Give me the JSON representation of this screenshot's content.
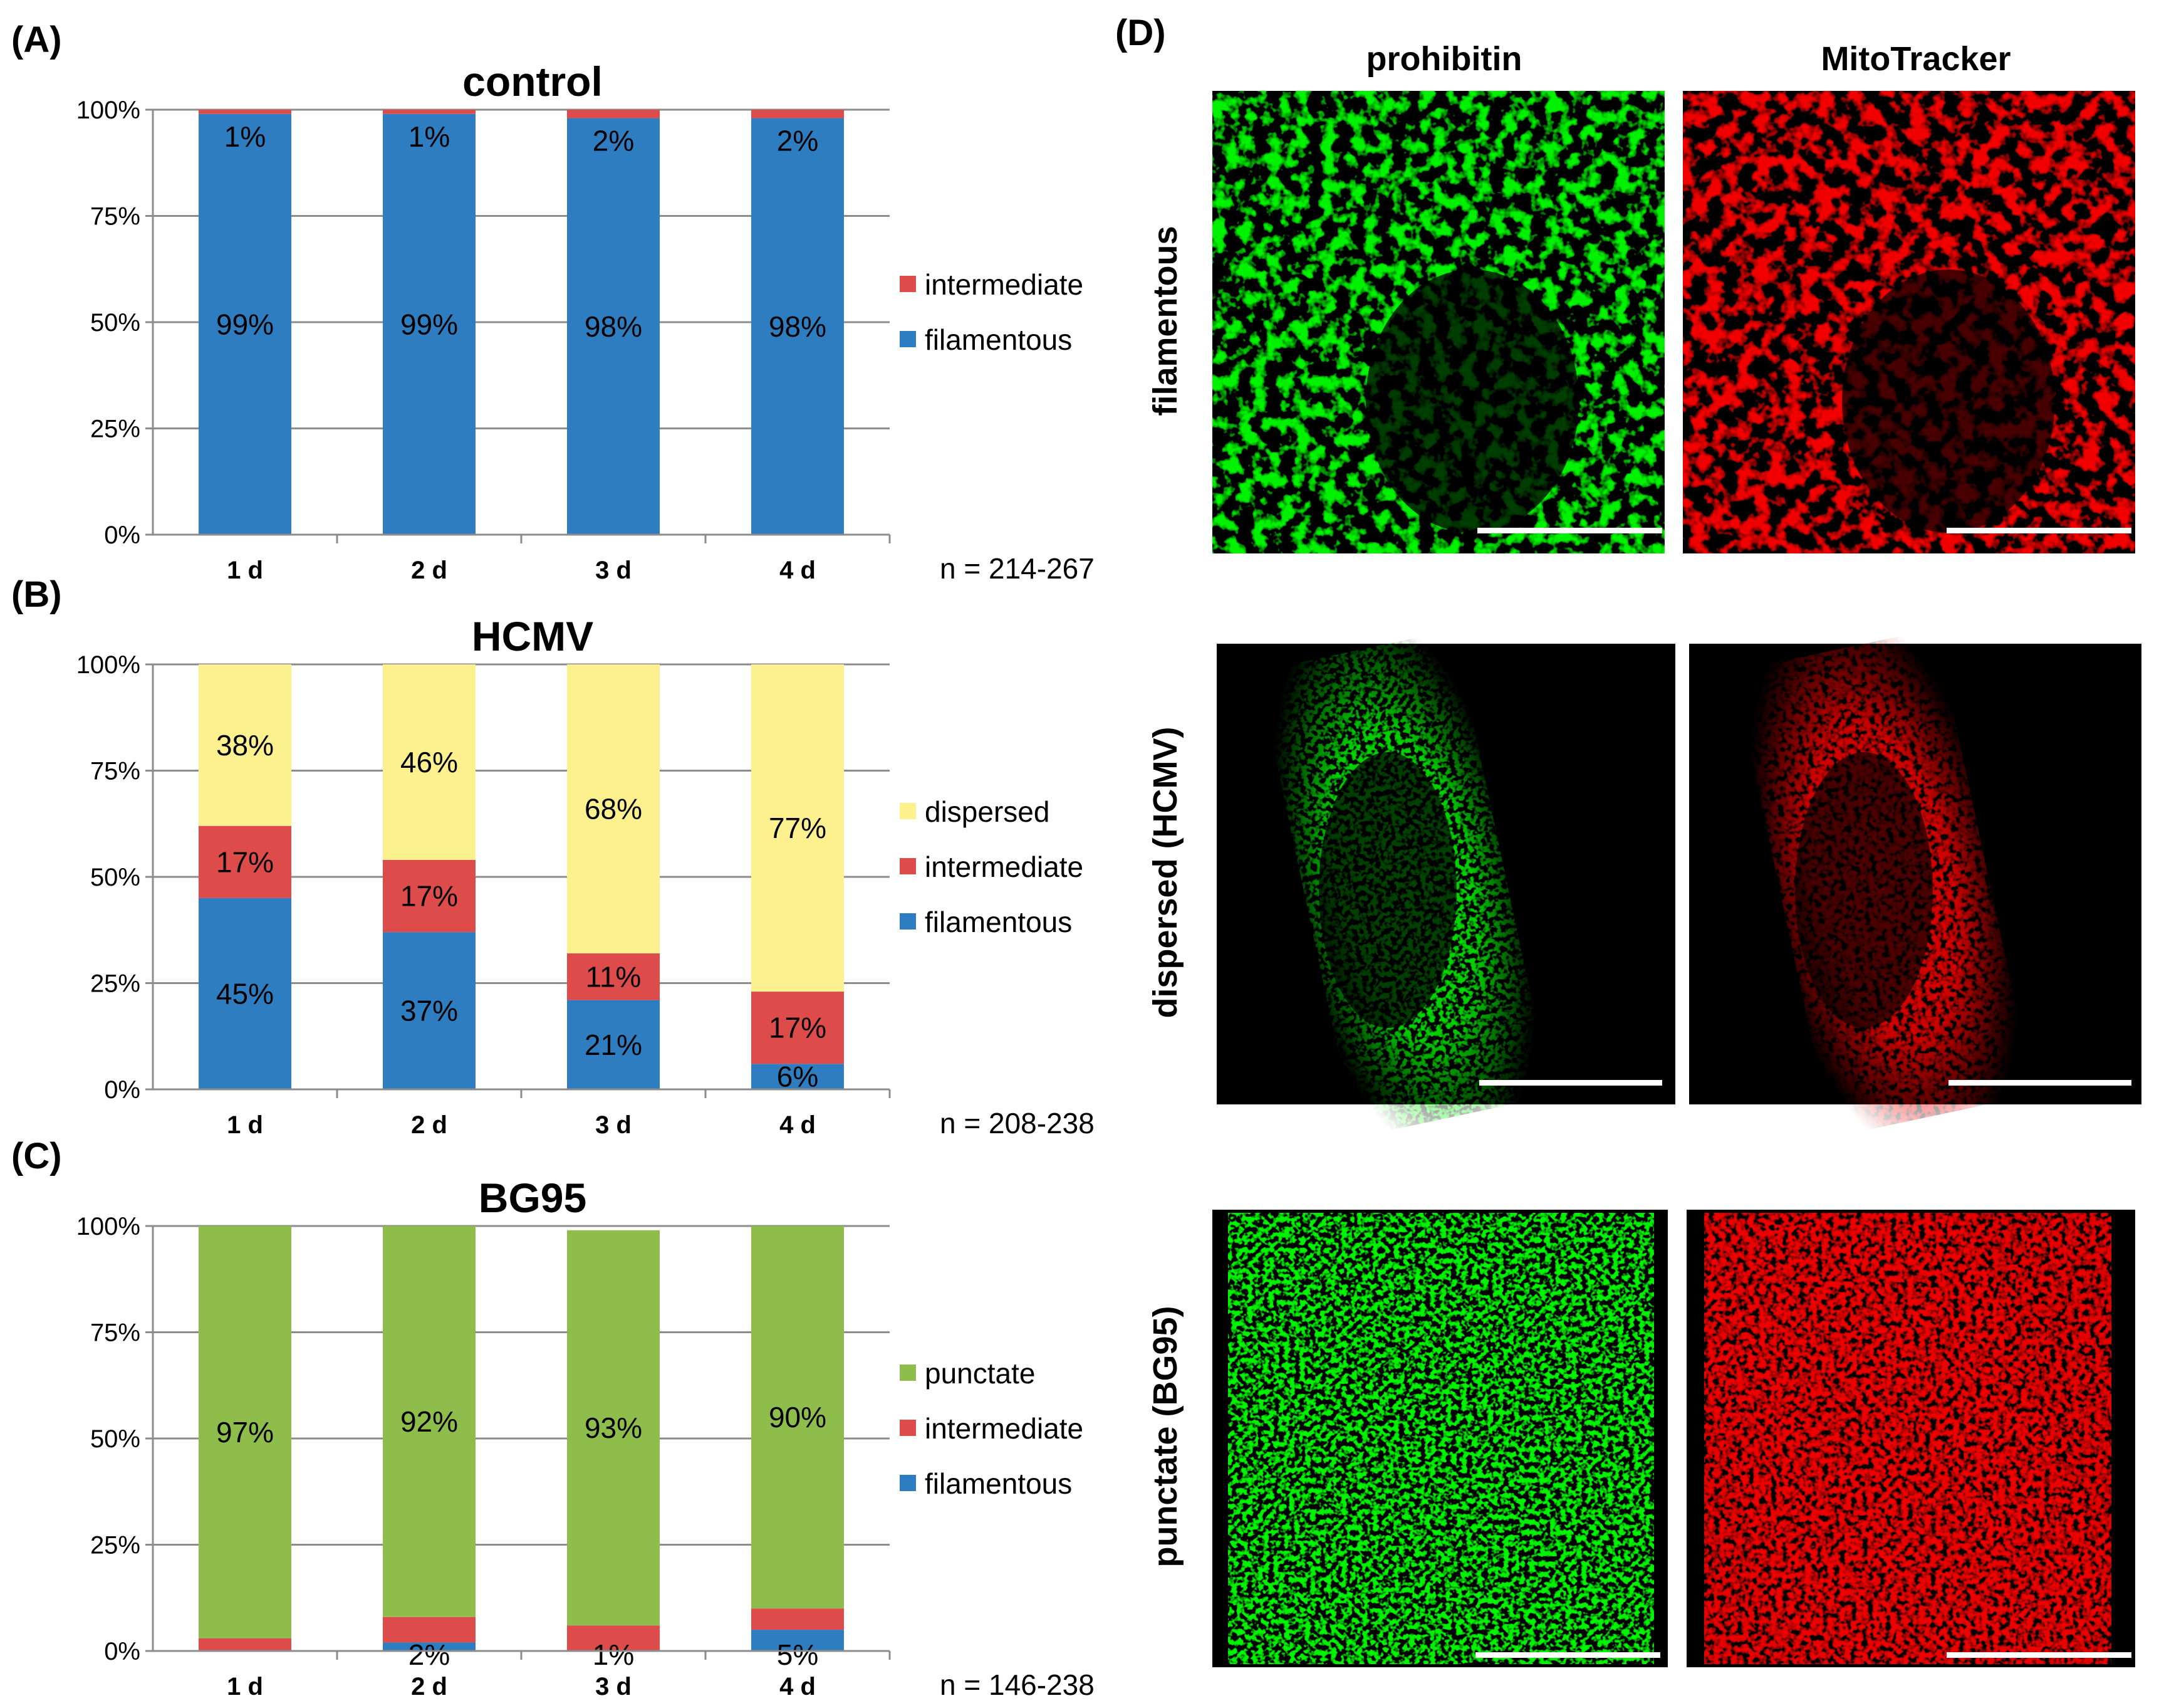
{
  "colors": {
    "filamentous": "#2e7dc0",
    "intermediate": "#dd4b4b",
    "dispersed": "#fdf08f",
    "punctate": "#8ebd4b"
  },
  "chart_data": [
    {
      "type": "bar",
      "stacked": true,
      "panel": "(A)",
      "title": "control",
      "categories": [
        "1 d",
        "2 d",
        "3 d",
        "4 d"
      ],
      "y_ticks": [
        "0%",
        "25%",
        "50%",
        "75%",
        "100%"
      ],
      "ylim": [
        0,
        100
      ],
      "grid": true,
      "legend_position": "right",
      "series": [
        {
          "name": "filamentous",
          "color_key": "filamentous",
          "values": [
            99,
            99,
            98,
            98
          ],
          "labels": [
            "99%",
            "99%",
            "98%",
            "98%"
          ]
        },
        {
          "name": "intermediate",
          "color_key": "intermediate",
          "values": [
            1,
            1,
            2,
            2
          ],
          "labels": [
            "1%",
            "1%",
            "2%",
            "2%"
          ]
        }
      ],
      "legend_order": [
        "intermediate",
        "filamentous"
      ],
      "n_note": "n = 214-267"
    },
    {
      "type": "bar",
      "stacked": true,
      "panel": "(B)",
      "title": "HCMV",
      "categories": [
        "1 d",
        "2 d",
        "3 d",
        "4 d"
      ],
      "y_ticks": [
        "0%",
        "25%",
        "50%",
        "75%",
        "100%"
      ],
      "ylim": [
        0,
        100
      ],
      "grid": true,
      "legend_position": "right",
      "series": [
        {
          "name": "filamentous",
          "color_key": "filamentous",
          "values": [
            45,
            37,
            21,
            6
          ],
          "labels": [
            "45%",
            "37%",
            "21%",
            "6%"
          ]
        },
        {
          "name": "intermediate",
          "color_key": "intermediate",
          "values": [
            17,
            17,
            11,
            17
          ],
          "labels": [
            "17%",
            "17%",
            "11%",
            "17%"
          ]
        },
        {
          "name": "dispersed",
          "color_key": "dispersed",
          "values": [
            38,
            46,
            68,
            77
          ],
          "labels": [
            "38%",
            "46%",
            "68%",
            "77%"
          ]
        }
      ],
      "legend_order": [
        "dispersed",
        "intermediate",
        "filamentous"
      ],
      "n_note": "n = 208-238"
    },
    {
      "type": "bar",
      "stacked": true,
      "panel": "(C)",
      "title": "BG95",
      "categories": [
        "1 d",
        "2 d",
        "3 d",
        "4 d"
      ],
      "y_ticks": [
        "0%",
        "25%",
        "50%",
        "75%",
        "100%"
      ],
      "ylim": [
        0,
        100
      ],
      "grid": true,
      "legend_position": "right",
      "series": [
        {
          "name": "filamentous",
          "color_key": "filamentous",
          "values": [
            0,
            2,
            0,
            5
          ],
          "labels": [
            "",
            "2%",
            "",
            "5%"
          ]
        },
        {
          "name": "intermediate",
          "color_key": "intermediate",
          "values": [
            3,
            6,
            6,
            5
          ],
          "labels": [
            "3%",
            "6%",
            "6%",
            "5%"
          ]
        },
        {
          "name": "punctate",
          "color_key": "punctate",
          "values": [
            97,
            92,
            93,
            90
          ],
          "labels": [
            "97%",
            "92%",
            "93%",
            "90%"
          ]
        }
      ],
      "extra_labels": [
        {
          "category_index": 2,
          "text": "1%"
        }
      ],
      "legend_order": [
        "punctate",
        "intermediate",
        "filamentous"
      ],
      "n_note": "n = 146-238"
    }
  ],
  "micrographs": {
    "panel": "(D)",
    "columns": [
      "prohibitin",
      "MitoTracker"
    ],
    "rows": [
      "filamentous",
      "dispersed (HCMV)",
      "punctate (BG95)"
    ]
  }
}
